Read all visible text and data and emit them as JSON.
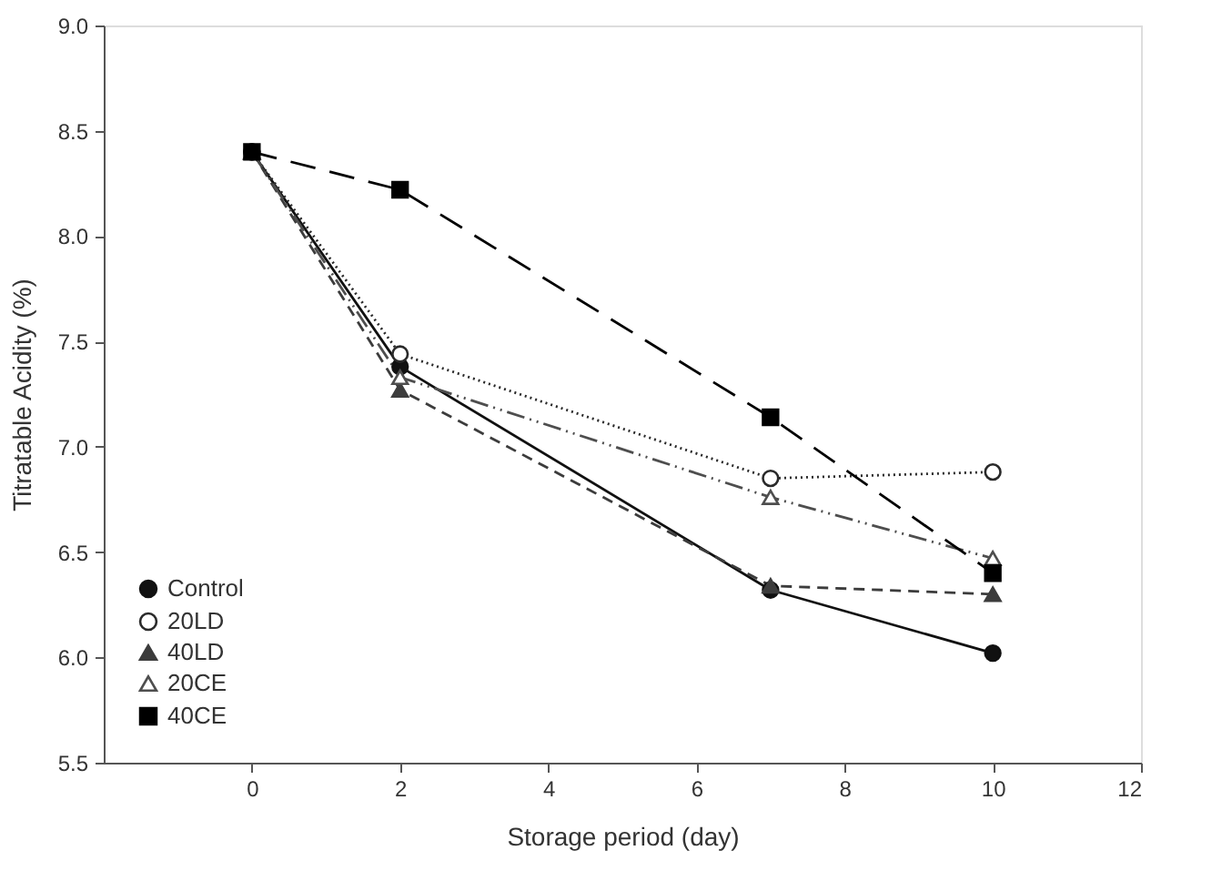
{
  "chart_data": {
    "type": "line",
    "xlabel": "Storage period (day)",
    "ylabel": "Titratable Acidity (%)",
    "x": [
      0,
      2,
      7,
      10
    ],
    "xlim": [
      -2,
      12
    ],
    "xticks": [
      0,
      2,
      4,
      6,
      8,
      10,
      12
    ],
    "ylim": [
      5.5,
      9.0
    ],
    "yticks": [
      {
        "value": 5.5,
        "label": "5.5"
      },
      {
        "value": 6.0,
        "label": "6.0"
      },
      {
        "value": 6.5,
        "label": "6.5"
      },
      {
        "value": 7.0,
        "label": "7.0"
      },
      {
        "value": 7.5,
        "label": "7.5"
      },
      {
        "value": 8.0,
        "label": "8.0"
      },
      {
        "value": 8.5,
        "label": "8.5"
      },
      {
        "value": 9.0,
        "label": "9.0"
      }
    ],
    "grid": false,
    "legend": "bottom left",
    "series": [
      {
        "name": "Control",
        "color": "#111111",
        "marker": "circle",
        "line_style": "solid",
        "values": [
          8.4,
          7.38,
          6.32,
          6.02
        ]
      },
      {
        "name": "20LD",
        "color": "#2a2a2a",
        "marker": "circle",
        "line_style": "dotted",
        "values": [
          8.4,
          7.44,
          6.85,
          6.88
        ]
      },
      {
        "name": "40LD",
        "color": "#3c3c3c",
        "marker": "triangle",
        "line_style": "dashed",
        "values": [
          8.4,
          7.27,
          6.34,
          6.3
        ]
      },
      {
        "name": "20CE",
        "color": "#4e4e4e",
        "marker": "triangle",
        "line_style": "dashdotdot",
        "values": [
          8.4,
          7.33,
          6.76,
          6.47
        ]
      },
      {
        "name": "40CE",
        "color": "#000000",
        "marker": "square",
        "line_style": "longdash",
        "values": [
          8.4,
          8.22,
          7.14,
          6.4
        ]
      }
    ]
  }
}
